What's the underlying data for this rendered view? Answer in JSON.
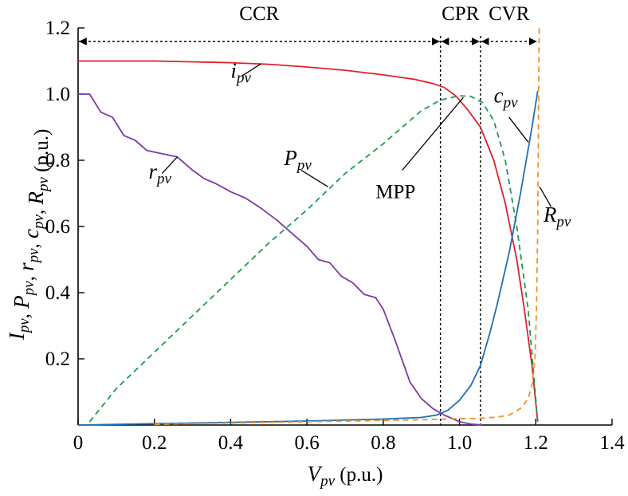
{
  "chart_data": {
    "type": "line",
    "xlabel": {
      "main": "V",
      "sub": "pv",
      "rest": " (p.u.)"
    },
    "ylabel": [
      {
        "main": "I",
        "sub": "pv"
      },
      {
        "main": ", "
      },
      {
        "main": "P",
        "sub": "pv"
      },
      {
        "main": ", "
      },
      {
        "main": "r",
        "sub": "pv"
      },
      {
        "main": ", "
      },
      {
        "main": "c",
        "sub": "pv"
      },
      {
        "main": ", "
      },
      {
        "main": "R",
        "sub": "pv"
      },
      {
        "main": " (p.u.)"
      }
    ],
    "xlim": [
      0,
      1.4
    ],
    "ylim": [
      0,
      1.2
    ],
    "xticks": [
      "0",
      "0.2",
      "0.4",
      "0.6",
      "0.8",
      "1.0",
      "1.2",
      "1.4"
    ],
    "yticks": [
      "0.2",
      "0.4",
      "0.6",
      "0.8",
      "1.0",
      "1.2"
    ],
    "grid": false,
    "regions": [
      {
        "label": "CCR",
        "from": 0,
        "to": 0.95
      },
      {
        "label": "CPR",
        "from": 0.95,
        "to": 1.055
      },
      {
        "label": "CVR",
        "from": 1.055,
        "to": 1.205
      }
    ],
    "boundaries": [
      0.95,
      1.055
    ],
    "series": [
      {
        "name": "i_pv",
        "label_main": "i",
        "label_sub": "pv",
        "color": "#e0202a",
        "dash": "solid",
        "x": [
          0,
          0.2,
          0.4,
          0.5,
          0.6,
          0.7,
          0.8,
          0.88,
          0.93,
          0.96,
          0.99,
          1.02,
          1.055,
          1.09,
          1.12,
          1.15,
          1.17,
          1.19,
          1.205
        ],
        "y": [
          1.1,
          1.1,
          1.095,
          1.09,
          1.082,
          1.072,
          1.058,
          1.045,
          1.032,
          1.02,
          0.995,
          0.955,
          0.9,
          0.8,
          0.67,
          0.5,
          0.35,
          0.18,
          0.01
        ]
      },
      {
        "name": "P_pv",
        "label_main": "P",
        "label_sub": "pv",
        "color": "#1f9a4f",
        "dash": "dashed",
        "x": [
          0.03,
          0.1,
          0.2,
          0.3,
          0.4,
          0.5,
          0.6,
          0.7,
          0.8,
          0.85,
          0.9,
          0.95,
          1.0,
          1.03,
          1.06,
          1.09,
          1.12,
          1.15,
          1.18,
          1.205
        ],
        "y": [
          0.01,
          0.11,
          0.22,
          0.33,
          0.44,
          0.55,
          0.65,
          0.76,
          0.85,
          0.9,
          0.95,
          0.982,
          0.995,
          0.993,
          0.975,
          0.92,
          0.8,
          0.6,
          0.35,
          0.01
        ]
      },
      {
        "name": "r_pv",
        "label_main": "r",
        "label_sub": "pv",
        "color": "#7b3aa3",
        "dash": "solid",
        "x": [
          0,
          0.03,
          0.06,
          0.09,
          0.12,
          0.15,
          0.18,
          0.22,
          0.26,
          0.3,
          0.33,
          0.36,
          0.4,
          0.44,
          0.48,
          0.52,
          0.56,
          0.6,
          0.63,
          0.66,
          0.69,
          0.72,
          0.75,
          0.78,
          0.8,
          0.83,
          0.87,
          0.9,
          0.93,
          0.96,
          1.0,
          1.03,
          1.06
        ],
        "y": [
          1.0,
          1.0,
          0.945,
          0.93,
          0.875,
          0.86,
          0.83,
          0.82,
          0.81,
          0.77,
          0.745,
          0.73,
          0.705,
          0.685,
          0.655,
          0.62,
          0.58,
          0.54,
          0.5,
          0.49,
          0.45,
          0.43,
          0.395,
          0.385,
          0.35,
          0.26,
          0.13,
          0.08,
          0.05,
          0.03,
          0.01,
          0.003,
          0.0
        ]
      },
      {
        "name": "c_pv",
        "label_main": "c",
        "label_sub": "pv",
        "color": "#1f6fb4",
        "dash": "solid",
        "x": [
          0,
          0.2,
          0.4,
          0.6,
          0.8,
          0.9,
          0.94,
          0.97,
          1.0,
          1.03,
          1.055,
          1.08,
          1.1,
          1.13,
          1.16,
          1.19,
          1.205
        ],
        "y": [
          0.0,
          0.004,
          0.008,
          0.012,
          0.018,
          0.023,
          0.03,
          0.045,
          0.075,
          0.12,
          0.18,
          0.28,
          0.37,
          0.52,
          0.7,
          0.9,
          1.01
        ]
      },
      {
        "name": "R_pv",
        "label_main": "R",
        "label_sub": "pv",
        "color": "#f0922a",
        "dash": "dashed",
        "x": [
          0.2,
          0.4,
          0.6,
          0.8,
          0.9,
          1.0,
          1.05,
          1.1,
          1.13,
          1.16,
          1.18,
          1.19,
          1.198,
          1.202,
          1.205,
          1.207,
          1.208,
          1.209
        ],
        "y": [
          0.002,
          0.006,
          0.01,
          0.014,
          0.016,
          0.019,
          0.02,
          0.024,
          0.03,
          0.05,
          0.08,
          0.12,
          0.2,
          0.35,
          0.6,
          0.9,
          1.1,
          1.2
        ]
      }
    ],
    "annotations": [
      {
        "main": "i",
        "sub": "pv",
        "tx": 0.4,
        "ty": 1.05,
        "lx": 0.43,
        "ly": 1.055,
        "px": 0.48,
        "py": 1.092
      },
      {
        "main": "r",
        "sub": "pv",
        "tx": 0.185,
        "ty": 0.745,
        "lx": 0.22,
        "ly": 0.76,
        "px": 0.26,
        "py": 0.81
      },
      {
        "main": "P",
        "sub": "pv",
        "tx": 0.54,
        "ty": 0.785,
        "lx": 0.585,
        "ly": 0.77,
        "px": 0.655,
        "py": 0.72
      },
      {
        "main": "MPP",
        "sub": "",
        "tx": 0.78,
        "ty": 0.685,
        "lx": 0.85,
        "ly": 0.77,
        "px": 1.01,
        "py": 0.99
      },
      {
        "main": "c",
        "sub": "pv",
        "tx": 1.09,
        "ty": 0.975,
        "lx": 1.13,
        "ly": 0.93,
        "px": 1.18,
        "py": 0.855
      },
      {
        "main": "R",
        "sub": "pv",
        "tx": 1.22,
        "ty": 0.615,
        "lx": 1.24,
        "ly": 0.66,
        "px": 1.21,
        "py": 0.72
      }
    ]
  }
}
